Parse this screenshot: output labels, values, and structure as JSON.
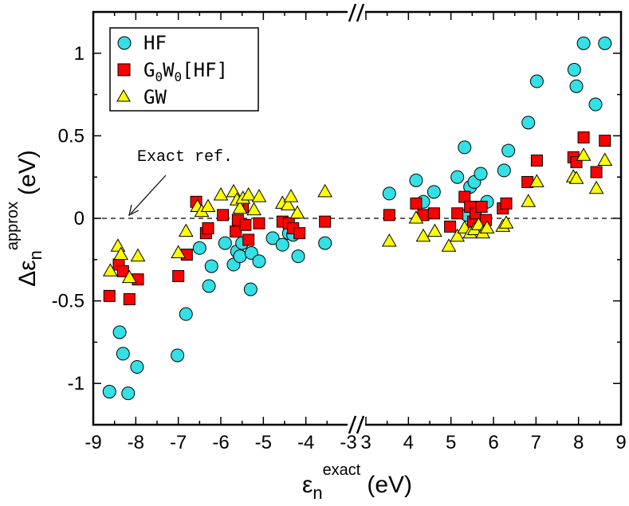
{
  "chart_data": {
    "type": "scatter",
    "title": "",
    "xlabel": {
      "main": "ε",
      "sub": "n",
      "sup": "exact",
      "unit": "(eV)"
    },
    "ylabel": {
      "main": "Δε",
      "sub": "n",
      "sup": "approx",
      "unit": "(eV)"
    },
    "x_segments": [
      {
        "range": [
          -9,
          -3
        ],
        "ticks": [
          -9,
          -8,
          -7,
          -6,
          -5,
          -4,
          -3
        ],
        "tick_labels": [
          "-9",
          "-8",
          "-7",
          "-6",
          "-5",
          "-4",
          "-3"
        ]
      },
      {
        "range": [
          3,
          9
        ],
        "ticks": [
          3,
          4,
          5,
          6,
          7,
          8,
          9
        ],
        "tick_labels": [
          "3",
          "4",
          "5",
          "6",
          "7",
          "8",
          "9"
        ]
      }
    ],
    "axis_break_label": "//",
    "ylim": [
      -1.25,
      1.25
    ],
    "y_ticks": [
      -1,
      -0.5,
      0,
      0.5,
      1
    ],
    "y_tick_labels": [
      "-1",
      "-0.5",
      "0",
      "0.5",
      "1"
    ],
    "grid": false,
    "legend_position": "top-left",
    "reference_line": {
      "y": 0,
      "style": "dashed",
      "label": "Exact ref."
    },
    "series": [
      {
        "name": "HF",
        "name_main": "HF",
        "marker": "circle",
        "color": "#33e0e6",
        "points": [
          [
            -8.62,
            -1.05
          ],
          [
            -8.38,
            -0.69
          ],
          [
            -8.3,
            -0.82
          ],
          [
            -8.18,
            -1.06
          ],
          [
            -7.97,
            -0.9
          ],
          [
            -7.02,
            -0.83
          ],
          [
            -6.82,
            -0.58
          ],
          [
            -6.5,
            -0.18
          ],
          [
            -6.28,
            -0.41
          ],
          [
            -6.22,
            -0.29
          ],
          [
            -5.9,
            -0.15
          ],
          [
            -5.7,
            -0.28
          ],
          [
            -5.62,
            -0.2
          ],
          [
            -5.55,
            -0.23
          ],
          [
            -5.5,
            -0.15
          ],
          [
            -5.3,
            -0.43
          ],
          [
            -5.28,
            -0.21
          ],
          [
            -5.1,
            -0.26
          ],
          [
            -4.78,
            -0.12
          ],
          [
            -4.55,
            -0.16
          ],
          [
            -4.4,
            -0.09
          ],
          [
            -4.3,
            -0.1
          ],
          [
            -4.18,
            -0.23
          ],
          [
            -3.55,
            -0.15
          ],
          [
            3.55,
            0.15
          ],
          [
            4.18,
            0.23
          ],
          [
            4.35,
            0.1
          ],
          [
            4.6,
            0.16
          ],
          [
            5.15,
            0.25
          ],
          [
            5.32,
            0.43
          ],
          [
            5.38,
            0.02
          ],
          [
            5.45,
            0.19
          ],
          [
            5.55,
            0.22
          ],
          [
            5.7,
            0.27
          ],
          [
            5.85,
            0.1
          ],
          [
            6.25,
            0.29
          ],
          [
            6.35,
            0.41
          ],
          [
            6.82,
            0.58
          ],
          [
            7.02,
            0.83
          ],
          [
            7.9,
            0.9
          ],
          [
            7.95,
            0.8
          ],
          [
            8.12,
            1.06
          ],
          [
            8.4,
            0.69
          ],
          [
            8.62,
            1.06
          ]
        ]
      },
      {
        "name": "G0W0[HF]",
        "name_main": "G",
        "name_sub1": "0",
        "name_mid": "W",
        "name_sub2": "0",
        "name_tail": "[HF]",
        "marker": "square",
        "color": "#ff0000",
        "points": [
          [
            -8.62,
            -0.47
          ],
          [
            -8.4,
            -0.28
          ],
          [
            -8.3,
            -0.32
          ],
          [
            -8.15,
            -0.49
          ],
          [
            -7.95,
            -0.37
          ],
          [
            -7.0,
            -0.35
          ],
          [
            -6.8,
            -0.22
          ],
          [
            -6.58,
            0.1
          ],
          [
            -6.35,
            -0.09
          ],
          [
            -6.3,
            -0.06
          ],
          [
            -5.95,
            0.02
          ],
          [
            -5.65,
            -0.08
          ],
          [
            -5.6,
            -0.01
          ],
          [
            -5.48,
            0.07
          ],
          [
            -5.42,
            -0.04
          ],
          [
            -5.35,
            -0.13
          ],
          [
            -5.1,
            -0.03
          ],
          [
            -4.55,
            -0.02
          ],
          [
            -4.4,
            -0.03
          ],
          [
            -4.3,
            -0.06
          ],
          [
            -4.15,
            -0.09
          ],
          [
            -3.55,
            -0.02
          ],
          [
            3.55,
            0.02
          ],
          [
            4.18,
            0.09
          ],
          [
            4.35,
            0.02
          ],
          [
            4.6,
            0.03
          ],
          [
            4.98,
            -0.05
          ],
          [
            5.15,
            0.03
          ],
          [
            5.32,
            0.13
          ],
          [
            5.45,
            0.07
          ],
          [
            5.52,
            -0.02
          ],
          [
            5.58,
            0.03
          ],
          [
            5.72,
            0.07
          ],
          [
            5.82,
            -0.01
          ],
          [
            6.22,
            0.06
          ],
          [
            6.3,
            0.09
          ],
          [
            6.8,
            0.22
          ],
          [
            7.02,
            0.35
          ],
          [
            7.88,
            0.37
          ],
          [
            7.95,
            0.34
          ],
          [
            8.12,
            0.49
          ],
          [
            8.42,
            0.28
          ],
          [
            8.62,
            0.47
          ]
        ]
      },
      {
        "name": "GW",
        "name_main": "GW",
        "marker": "triangle",
        "color": "#ffff00",
        "points": [
          [
            -8.6,
            -0.32
          ],
          [
            -8.42,
            -0.17
          ],
          [
            -8.35,
            -0.22
          ],
          [
            -8.15,
            -0.36
          ],
          [
            -7.95,
            -0.23
          ],
          [
            -7.0,
            -0.21
          ],
          [
            -6.82,
            -0.08
          ],
          [
            -6.55,
            0.07
          ],
          [
            -6.45,
            0.04
          ],
          [
            -6.3,
            0.07
          ],
          [
            -6.0,
            0.14
          ],
          [
            -5.7,
            0.16
          ],
          [
            -5.62,
            0.11
          ],
          [
            -5.55,
            0.06
          ],
          [
            -5.48,
            0.12
          ],
          [
            -5.35,
            0.14
          ],
          [
            -5.22,
            0.05
          ],
          [
            -5.1,
            0.13
          ],
          [
            -4.55,
            0.09
          ],
          [
            -4.42,
            0.08
          ],
          [
            -4.35,
            0.13
          ],
          [
            -4.2,
            0.03
          ],
          [
            -3.55,
            0.16
          ],
          [
            3.55,
            -0.14
          ],
          [
            4.18,
            0.0
          ],
          [
            4.35,
            -0.11
          ],
          [
            4.62,
            -0.08
          ],
          [
            4.95,
            -0.17
          ],
          [
            5.15,
            -0.11
          ],
          [
            5.32,
            -0.06
          ],
          [
            5.45,
            -0.09
          ],
          [
            5.55,
            -0.07
          ],
          [
            5.65,
            -0.04
          ],
          [
            5.75,
            -0.09
          ],
          [
            5.85,
            -0.06
          ],
          [
            6.22,
            -0.05
          ],
          [
            6.3,
            -0.03
          ],
          [
            6.82,
            0.1
          ],
          [
            7.02,
            0.22
          ],
          [
            7.88,
            0.25
          ],
          [
            7.95,
            0.24
          ],
          [
            8.12,
            0.38
          ],
          [
            8.42,
            0.18
          ],
          [
            8.62,
            0.35
          ]
        ]
      }
    ]
  }
}
